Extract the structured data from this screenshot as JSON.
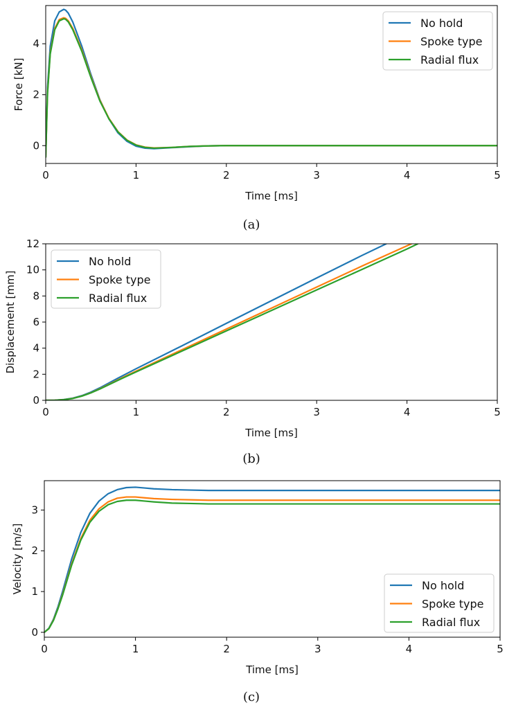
{
  "colors": {
    "no_hold": "#1f77b4",
    "spoke_type": "#ff7f0e",
    "radial_flux": "#2ca02c",
    "axis": "#000000",
    "legend_border": "#cccccc"
  },
  "chart_data": [
    {
      "type": "line",
      "caption": "(a)",
      "xlabel": "Time [ms]",
      "ylabel": "Force [kN]",
      "xlim": [
        0,
        5
      ],
      "ylim": [
        -0.7,
        5.5
      ],
      "xticks": [
        0,
        1,
        2,
        3,
        4,
        5
      ],
      "yticks": [
        0,
        2,
        4
      ],
      "grid": false,
      "legend_position": "top-right",
      "series": [
        {
          "name": "No hold",
          "color_key": "no_hold",
          "x": [
            0,
            0.02,
            0.05,
            0.1,
            0.15,
            0.2,
            0.22,
            0.25,
            0.3,
            0.4,
            0.5,
            0.6,
            0.7,
            0.8,
            0.9,
            1.0,
            1.1,
            1.2,
            1.4,
            1.6,
            1.8,
            2.0,
            2.5,
            3.0,
            4.0,
            5.0
          ],
          "y": [
            -0.45,
            2.3,
            3.9,
            4.9,
            5.25,
            5.35,
            5.32,
            5.2,
            4.85,
            3.9,
            2.8,
            1.8,
            1.05,
            0.5,
            0.17,
            -0.02,
            -0.1,
            -0.12,
            -0.08,
            -0.04,
            -0.01,
            0,
            0,
            0,
            0,
            0
          ]
        },
        {
          "name": "Spoke type",
          "color_key": "spoke_type",
          "x": [
            0,
            0.02,
            0.05,
            0.1,
            0.15,
            0.2,
            0.22,
            0.25,
            0.3,
            0.4,
            0.5,
            0.6,
            0.7,
            0.8,
            0.9,
            1.0,
            1.1,
            1.2,
            1.4,
            1.6,
            1.8,
            2.0,
            2.5,
            3.0,
            4.0,
            5.0
          ],
          "y": [
            -0.45,
            2.1,
            3.65,
            4.6,
            4.95,
            5.02,
            5.0,
            4.9,
            4.6,
            3.75,
            2.72,
            1.78,
            1.07,
            0.55,
            0.22,
            0.03,
            -0.06,
            -0.09,
            -0.07,
            -0.03,
            -0.01,
            0,
            0,
            0,
            0,
            0
          ]
        },
        {
          "name": "Radial flux",
          "color_key": "radial_flux",
          "x": [
            0,
            0.02,
            0.05,
            0.1,
            0.15,
            0.2,
            0.22,
            0.25,
            0.3,
            0.4,
            0.5,
            0.6,
            0.7,
            0.8,
            0.9,
            1.0,
            1.1,
            1.2,
            1.4,
            1.6,
            1.8,
            2.0,
            2.5,
            3.0,
            4.0,
            5.0
          ],
          "y": [
            -0.45,
            2.05,
            3.6,
            4.55,
            4.9,
            4.98,
            4.96,
            4.86,
            4.55,
            3.7,
            2.68,
            1.75,
            1.05,
            0.54,
            0.21,
            0.02,
            -0.07,
            -0.1,
            -0.07,
            -0.03,
            -0.01,
            0,
            0,
            0,
            0,
            0
          ]
        }
      ]
    },
    {
      "type": "line",
      "caption": "(b)",
      "xlabel": "Time [ms]",
      "ylabel": "Displacement [mm]",
      "xlim": [
        0,
        5
      ],
      "ylim": [
        0,
        12
      ],
      "xticks": [
        0,
        1,
        2,
        3,
        4,
        5
      ],
      "yticks": [
        0,
        2,
        4,
        6,
        8,
        10,
        12
      ],
      "grid": false,
      "legend_position": "top-left",
      "series": [
        {
          "name": "No hold",
          "color_key": "no_hold",
          "x": [
            0,
            0.1,
            0.2,
            0.3,
            0.4,
            0.5,
            0.6,
            0.7,
            0.8,
            0.9,
            1.0,
            1.5,
            2.0,
            2.5,
            3.0,
            3.5,
            3.77
          ],
          "y": [
            0,
            0.01,
            0.06,
            0.17,
            0.36,
            0.63,
            0.96,
            1.33,
            1.7,
            2.06,
            2.42,
            4.15,
            5.9,
            7.64,
            9.38,
            11.1,
            12.0
          ]
        },
        {
          "name": "Spoke type",
          "color_key": "spoke_type",
          "x": [
            0,
            0.1,
            0.2,
            0.3,
            0.4,
            0.5,
            0.6,
            0.7,
            0.8,
            0.9,
            1.0,
            1.5,
            2.0,
            2.5,
            3.0,
            3.5,
            4.0,
            4.05
          ],
          "y": [
            0,
            0.01,
            0.05,
            0.15,
            0.33,
            0.58,
            0.89,
            1.23,
            1.57,
            1.91,
            2.24,
            3.85,
            5.46,
            7.07,
            8.68,
            10.29,
            11.85,
            12.0
          ]
        },
        {
          "name": "Radial flux",
          "color_key": "radial_flux",
          "x": [
            0,
            0.1,
            0.2,
            0.3,
            0.4,
            0.5,
            0.6,
            0.7,
            0.8,
            0.9,
            1.0,
            1.5,
            2.0,
            2.5,
            3.0,
            3.5,
            4.0,
            4.12
          ],
          "y": [
            0,
            0.01,
            0.05,
            0.14,
            0.32,
            0.57,
            0.87,
            1.2,
            1.53,
            1.86,
            2.18,
            3.75,
            5.32,
            6.89,
            8.46,
            10.03,
            11.6,
            12.0
          ]
        }
      ]
    },
    {
      "type": "line",
      "caption": "(c)",
      "xlabel": "Time [ms]",
      "ylabel": "Velocity [m/s]",
      "xlim": [
        0,
        5
      ],
      "ylim": [
        -0.12,
        3.72
      ],
      "xticks": [
        0,
        1,
        2,
        3,
        4,
        5
      ],
      "yticks": [
        0,
        1,
        2,
        3
      ],
      "grid": false,
      "legend_position": "bottom-right",
      "series": [
        {
          "name": "No hold",
          "color_key": "no_hold",
          "x": [
            0,
            0.05,
            0.1,
            0.15,
            0.2,
            0.3,
            0.4,
            0.5,
            0.6,
            0.7,
            0.8,
            0.9,
            1.0,
            1.1,
            1.2,
            1.4,
            1.6,
            1.8,
            2.0,
            3.0,
            4.0,
            5.0
          ],
          "y": [
            0,
            0.1,
            0.32,
            0.63,
            1.0,
            1.8,
            2.45,
            2.92,
            3.22,
            3.4,
            3.5,
            3.55,
            3.56,
            3.54,
            3.52,
            3.5,
            3.49,
            3.48,
            3.48,
            3.48,
            3.48,
            3.48
          ]
        },
        {
          "name": "Spoke type",
          "color_key": "spoke_type",
          "x": [
            0,
            0.05,
            0.1,
            0.15,
            0.2,
            0.3,
            0.4,
            0.5,
            0.6,
            0.7,
            0.8,
            0.9,
            1.0,
            1.1,
            1.2,
            1.4,
            1.6,
            1.8,
            2.0,
            3.0,
            4.0,
            5.0
          ],
          "y": [
            0,
            0.09,
            0.3,
            0.59,
            0.93,
            1.68,
            2.3,
            2.75,
            3.03,
            3.2,
            3.29,
            3.32,
            3.32,
            3.3,
            3.28,
            3.26,
            3.25,
            3.24,
            3.24,
            3.24,
            3.24,
            3.24
          ]
        },
        {
          "name": "Radial flux",
          "color_key": "radial_flux",
          "x": [
            0,
            0.05,
            0.1,
            0.15,
            0.2,
            0.3,
            0.4,
            0.5,
            0.6,
            0.7,
            0.8,
            0.9,
            1.0,
            1.1,
            1.2,
            1.4,
            1.6,
            1.8,
            2.0,
            3.0,
            4.0,
            5.0
          ],
          "y": [
            0,
            0.09,
            0.29,
            0.58,
            0.91,
            1.65,
            2.26,
            2.7,
            2.97,
            3.13,
            3.21,
            3.24,
            3.24,
            3.22,
            3.2,
            3.17,
            3.16,
            3.15,
            3.15,
            3.15,
            3.15,
            3.15
          ]
        }
      ]
    }
  ]
}
